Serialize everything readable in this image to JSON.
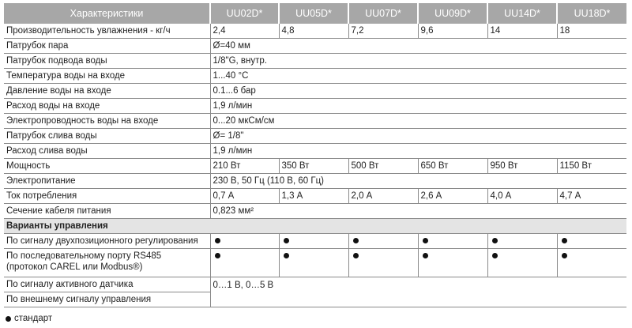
{
  "header": {
    "label": "Характеристики",
    "models": [
      "UU02D*",
      "UU05D*",
      "UU07D*",
      "UU09D*",
      "UU14D*",
      "UU18D*"
    ]
  },
  "rows": {
    "capacity": {
      "label": "Производительность увлажнения - кг/ч",
      "values": [
        "2,4",
        "4,8",
        "7,2",
        "9,6",
        "14",
        "18"
      ]
    },
    "steam_outlet": {
      "label": "Патрубок пара",
      "value": "Ø=40 мм"
    },
    "water_inlet": {
      "label": "Патрубок подвода воды",
      "value": "1/8\"G, внутр."
    },
    "water_temp": {
      "label": "Температура воды на входе",
      "value": "1...40 °C"
    },
    "water_pressure": {
      "label": "Давление воды на входе",
      "value": "0.1...6 бар"
    },
    "water_flow": {
      "label": "Расход воды на входе",
      "value": "1,9 л/мин"
    },
    "conductivity": {
      "label": "Электропроводность воды на входе",
      "value": "0...20 мкСм/см"
    },
    "drain_outlet": {
      "label": "Патрубок слива воды",
      "value": "Ø= 1/8\""
    },
    "drain_flow": {
      "label": "Расход слива воды",
      "value": "1,9 л/мин"
    },
    "power": {
      "label": "Мощность",
      "values": [
        "210 Вт",
        "350 Вт",
        "500 Вт",
        "650 Вт",
        "950 Вт",
        "1150 Вт"
      ]
    },
    "supply": {
      "label": "Электропитание",
      "value": "230 В, 50 Гц (110 В, 60 Гц)"
    },
    "current": {
      "label": "Ток потребления",
      "values": [
        "0,7 А",
        "1,3 А",
        "2,0 А",
        "2,6 А",
        "4,0 А",
        "4,7 А"
      ]
    },
    "cable": {
      "label": "Сечение кабеля питания",
      "value": "0,823 мм²"
    }
  },
  "control": {
    "section_label": "Варианты управления",
    "onoff": {
      "label": "По сигналу двухпозиционного регулирования",
      "standard": [
        true,
        true,
        true,
        true,
        true,
        true
      ]
    },
    "rs485": {
      "label_line1": "По последовательному порту RS485",
      "label_line2": "(протокол CAREL или Modbus®)",
      "standard": [
        true,
        true,
        true,
        true,
        true,
        true
      ]
    },
    "active_sensor": {
      "label": "По сигналу активного датчика",
      "value": "0…1 В, 0…5 В"
    },
    "external": {
      "label": "По внешнему сигналу управления"
    }
  },
  "legend": {
    "dot_label": "стандарт"
  }
}
